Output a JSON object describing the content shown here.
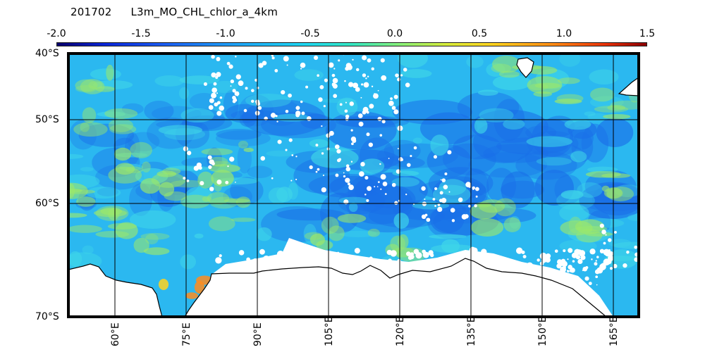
{
  "header": {
    "date": "201702",
    "product": "L3m_MO_CHL_chlor_a_4km"
  },
  "colorbar": {
    "ticks": [
      "-2.0",
      "-1.5",
      "-1.0",
      "-0.5",
      "0.0",
      "0.5",
      "1.0",
      "1.5"
    ]
  },
  "map": {
    "lat_labels": [
      "40°S",
      "50°S",
      "60°S",
      "70°S"
    ],
    "lon_labels": [
      "60°E",
      "75°E",
      "90°E",
      "105°E",
      "120°E",
      "135°E",
      "150°E",
      "165°E"
    ],
    "colors": {
      "ocean_base": "#2bb8f0",
      "ocean_low": "#1a6fe8",
      "ocean_mid": "#3fd6e8",
      "ocean_high": "#9ce86a",
      "bloom": "#ff8c1e",
      "land": "#ffffff",
      "cloud": "#ffffff",
      "grid": "#000000"
    }
  }
}
